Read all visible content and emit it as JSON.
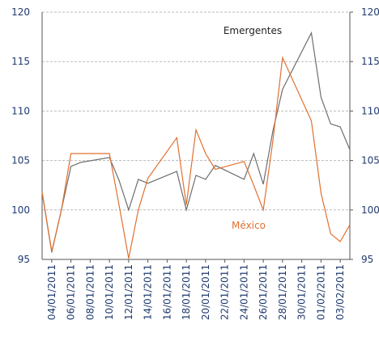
{
  "chart_data": {
    "type": "line",
    "x": [
      "03/01/2011",
      "04/01/2011",
      "05/01/2011",
      "06/01/2011",
      "07/01/2011",
      "10/01/2011",
      "11/01/2011",
      "12/01/2011",
      "13/01/2011",
      "14/01/2011",
      "17/01/2011",
      "18/01/2011",
      "19/01/2011",
      "20/01/2011",
      "21/01/2011",
      "24/01/2011",
      "25/01/2011",
      "26/01/2011",
      "27/01/2011",
      "28/01/2011",
      "31/01/2011",
      "01/02/2011",
      "02/02/2011",
      "03/02/2011",
      "04/02/2011"
    ],
    "series": [
      {
        "name": "Emergentes",
        "color": "#6e6e6e",
        "values": [
          101.8,
          95.7,
          100,
          104.4,
          104.8,
          105.3,
          103,
          100,
          103.1,
          102.7,
          103.9,
          100,
          103.5,
          103.1,
          104.5,
          103.1,
          105.7,
          102.6,
          108,
          112.2,
          117.9,
          111.4,
          108.7,
          108.4,
          106.1
        ]
      },
      {
        "name": "México",
        "color": "#e07030",
        "values": [
          101.8,
          95.8,
          100,
          105.7,
          105.7,
          105.7,
          100.5,
          95.1,
          100,
          103.2,
          107.3,
          100.5,
          108.1,
          105.7,
          104.1,
          104.9,
          102.5,
          100,
          107,
          115.4,
          109,
          101.7,
          97.6,
          96.8,
          98.5
        ]
      }
    ],
    "xlim": [
      "03/01/2011",
      "04/02/2011"
    ],
    "xticks": [
      "04/01/2011",
      "06/01/2011",
      "08/01/2011",
      "10/01/2011",
      "12/01/2011",
      "14/01/2011",
      "16/01/2011",
      "18/01/2011",
      "20/01/2011",
      "22/01/2011",
      "24/01/2011",
      "26/01/2011",
      "28/01/2011",
      "30/01/2011",
      "01/02/2011",
      "03/02/2011"
    ],
    "ylim": [
      95,
      120
    ],
    "yticks": [
      95,
      100,
      105,
      110,
      115,
      120
    ],
    "y2lim": [
      95,
      120
    ],
    "y2ticks": [
      95,
      100,
      105,
      110,
      115,
      120
    ],
    "grid": true
  }
}
